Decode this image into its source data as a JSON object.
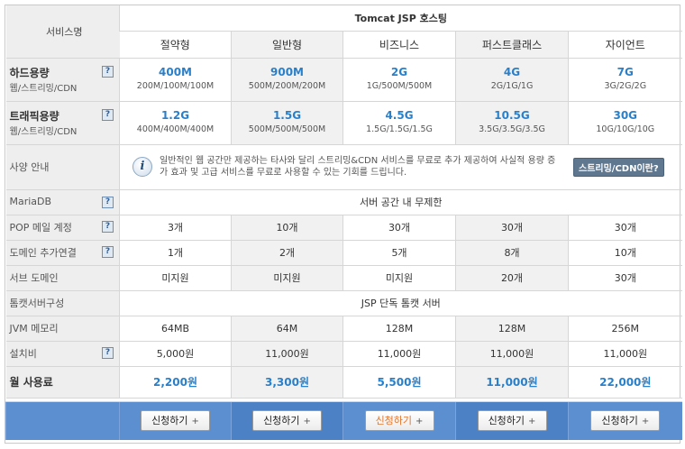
{
  "header": {
    "service_label": "서비스명",
    "product_title": "Tomcat JSP 호스팅",
    "plans": [
      "절약형",
      "일반형",
      "비즈니스",
      "퍼스트클래스",
      "자이언트"
    ]
  },
  "rows": {
    "disk": {
      "label_main": "하드용량",
      "label_sub": "웹/스트리밍/CDN",
      "totals": [
        "400M",
        "900M",
        "2G",
        "4G",
        "7G"
      ],
      "details": [
        "200M/100M/100M",
        "500M/200M/200M",
        "1G/500M/500M",
        "2G/1G/1G",
        "3G/2G/2G"
      ]
    },
    "traffic": {
      "label_main": "트래픽용량",
      "label_sub": "웹/스트리밍/CDN",
      "totals": [
        "1.2G",
        "1.5G",
        "4.5G",
        "10.5G",
        "30G"
      ],
      "details": [
        "400M/400M/400M",
        "500M/500M/500M",
        "1.5G/1.5G/1.5G",
        "3.5G/3.5G/3.5G",
        "10G/10G/10G"
      ]
    },
    "notice": {
      "label": "사양 안내",
      "text": "일반적인 웹 공간만 제공하는 타사와 달리 스트리밍&CDN 서비스를 무료로 추가 제공하여 사실적 용량 증가 효과 및 고급 서비스를 무료로 사용할 수 있는 기회를 드립니다.",
      "button": "스트리밍/CDN이란?"
    },
    "mariadb": {
      "label": "MariaDB",
      "value": "서버 공간 내 무제한"
    },
    "pop": {
      "label": "POP 메일 계정",
      "values": [
        "3개",
        "10개",
        "30개",
        "30개",
        "30개"
      ]
    },
    "domain_add": {
      "label": "도메인 추가연결",
      "values": [
        "1개",
        "2개",
        "5개",
        "8개",
        "10개"
      ]
    },
    "sub_domain": {
      "label": "서브 도메인",
      "values": [
        "미지원",
        "미지원",
        "미지원",
        "20개",
        "30개"
      ]
    },
    "tomcat": {
      "label": "톰캣서버구성",
      "value": "JSP 단독 톰캣 서버"
    },
    "jvm": {
      "label": "JVM 메모리",
      "values": [
        "64MB",
        "64M",
        "128M",
        "128M",
        "256M"
      ]
    },
    "setup": {
      "label": "설치비",
      "values": [
        "5,000원",
        "11,000원",
        "11,000원",
        "11,000원",
        "11,000원"
      ]
    },
    "monthly": {
      "label": "월 사용료",
      "values": [
        "2,200원",
        "3,300원",
        "5,500원",
        "11,000원",
        "22,000원"
      ]
    }
  },
  "help_icon": "?",
  "apply_label": "신청하기",
  "apply_plus": "+",
  "colors": {
    "accent_blue": "#2a7fc9",
    "footer_blue": "#5b8fd0",
    "highlight_orange": "#e1762c"
  }
}
